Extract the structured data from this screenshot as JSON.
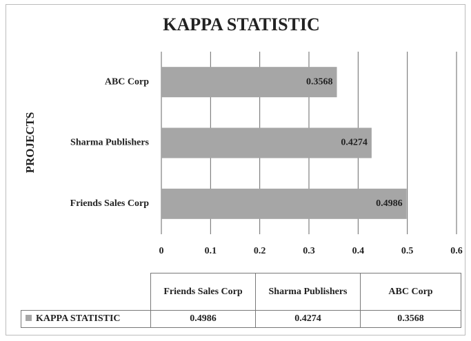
{
  "chart_data": {
    "type": "bar",
    "orientation": "horizontal",
    "title": "KAPPA STATISTIC",
    "y_label": "PROJECTS",
    "categories": [
      "Friends Sales Corp",
      "Sharma Publishers",
      "ABC Corp"
    ],
    "series": [
      {
        "name": "KAPPA STATISTIC",
        "color": "#a6a6a6",
        "values": [
          0.4986,
          0.4274,
          0.3568
        ]
      }
    ],
    "xlim": [
      0,
      0.6
    ],
    "xticks": [
      0,
      0.1,
      0.2,
      0.3,
      0.4,
      0.5,
      0.6
    ],
    "grid": true,
    "data_table": true
  }
}
